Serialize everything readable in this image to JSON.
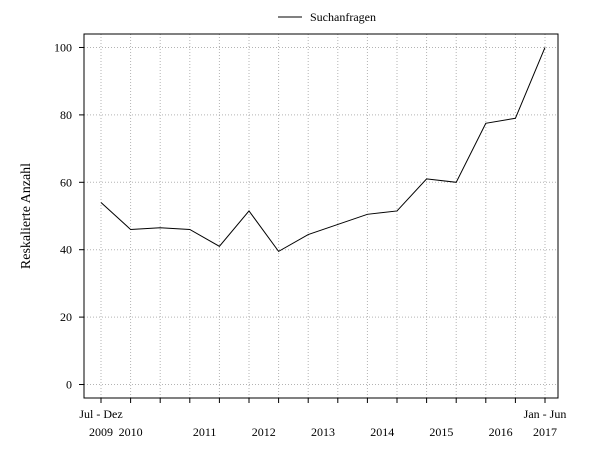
{
  "chart_data": {
    "type": "line",
    "title": "",
    "xlabel": "",
    "ylabel": "Reskalierte Anzahl",
    "ylim": [
      -4,
      104
    ],
    "yticks": [
      0,
      20,
      40,
      60,
      80,
      100
    ],
    "grid": true,
    "grid_style": "dotted",
    "legend_placement": "top-center",
    "line_color": "#000000",
    "x_tick_labels": [
      {
        "index": 0,
        "top": "Jul - Dez",
        "bottom": "2009"
      },
      {
        "index": 1,
        "top": "",
        "bottom": "2010"
      },
      {
        "index": 3.5,
        "top": "",
        "bottom": "2011"
      },
      {
        "index": 5.5,
        "top": "",
        "bottom": "2012"
      },
      {
        "index": 7.5,
        "top": "",
        "bottom": "2013"
      },
      {
        "index": 9.5,
        "top": "",
        "bottom": "2014"
      },
      {
        "index": 11.5,
        "top": "",
        "bottom": "2015"
      },
      {
        "index": 13.5,
        "top": "",
        "bottom": "2016"
      },
      {
        "index": 15,
        "top": "Jan - Jun",
        "bottom": "2017"
      }
    ],
    "series": [
      {
        "name": "Suchanfragen",
        "values": [
          54,
          46,
          46.5,
          46,
          41,
          51.5,
          39.5,
          44.5,
          47.5,
          50.5,
          51.5,
          61,
          60,
          77.5,
          79,
          100
        ]
      }
    ]
  }
}
